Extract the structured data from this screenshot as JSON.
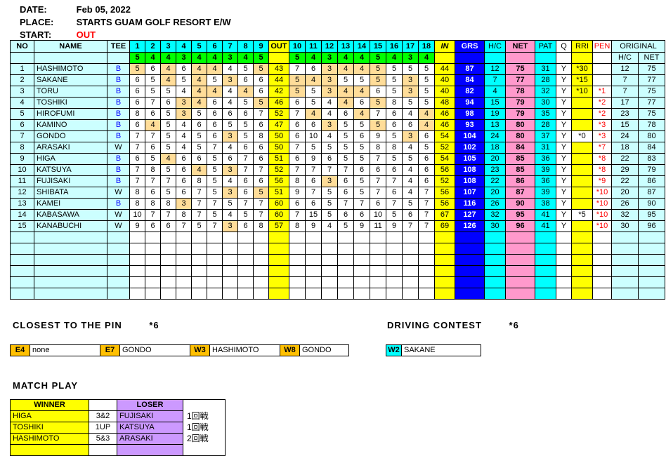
{
  "meta": {
    "date_label": "DATE:",
    "date_value": "Feb 05, 2022",
    "place_label": "PLACE:",
    "place_value": "STARTS GUAM GOLF RESORT E/W",
    "start_label": "START:",
    "start_value": "OUT"
  },
  "scorecard": {
    "headers": {
      "no": "NO",
      "name": "NAME",
      "tee": "TEE",
      "out": "OUT",
      "in": "IN",
      "grs": "GRS",
      "hc": "H/C",
      "net": "NET",
      "pat": "PAT",
      "q": "Q",
      "rri": "RRI",
      "pen": "PEN",
      "original": "ORIGINAL",
      "orig_hc": "H/C",
      "orig_net": "NET"
    },
    "hole_numbers_out": [
      "1",
      "2",
      "3",
      "4",
      "5",
      "6",
      "7",
      "8",
      "9"
    ],
    "hole_numbers_in": [
      "10",
      "11",
      "12",
      "13",
      "14",
      "15",
      "16",
      "17",
      "18"
    ],
    "par_out": [
      5,
      4,
      4,
      3,
      4,
      4,
      3,
      4,
      5
    ],
    "par_in": [
      5,
      4,
      3,
      4,
      4,
      5,
      4,
      3,
      4
    ],
    "empty_rows": 6,
    "players": [
      {
        "no": 1,
        "name": "HASHIMOTO",
        "tee": "B",
        "out_holes": [
          5,
          6,
          4,
          6,
          4,
          4,
          4,
          5,
          5
        ],
        "out": 43,
        "in_holes": [
          7,
          6,
          3,
          4,
          4,
          5,
          5,
          5,
          5
        ],
        "in": 44,
        "grs": 87,
        "hc": 12,
        "net": 75,
        "pat": 31,
        "q": "Y",
        "rri": "*30",
        "rri_white": false,
        "pen": "",
        "orig_hc": 12,
        "orig_net": 75
      },
      {
        "no": 2,
        "name": "SAKANE",
        "tee": "B",
        "out_holes": [
          6,
          5,
          4,
          5,
          4,
          5,
          3,
          6,
          6
        ],
        "out": 44,
        "in_holes": [
          5,
          4,
          3,
          5,
          5,
          5,
          5,
          3,
          5
        ],
        "in": 40,
        "grs": 84,
        "hc": 7,
        "net": 77,
        "pat": 28,
        "q": "Y",
        "rri": "*15",
        "rri_white": false,
        "pen": "",
        "orig_hc": 7,
        "orig_net": 77
      },
      {
        "no": 3,
        "name": "TORU",
        "tee": "B",
        "out_holes": [
          6,
          5,
          5,
          4,
          4,
          4,
          4,
          4,
          6
        ],
        "out": 42,
        "in_holes": [
          5,
          5,
          3,
          4,
          4,
          6,
          5,
          3,
          5
        ],
        "in": 40,
        "grs": 82,
        "hc": 4,
        "net": 78,
        "pat": 32,
        "q": "Y",
        "rri": "*10",
        "rri_white": false,
        "pen": "*1",
        "orig_hc": 7,
        "orig_net": 75
      },
      {
        "no": 4,
        "name": "TOSHIKI",
        "tee": "B",
        "out_holes": [
          6,
          7,
          6,
          3,
          4,
          6,
          4,
          5,
          5
        ],
        "out": 46,
        "in_holes": [
          6,
          5,
          4,
          4,
          6,
          5,
          8,
          5,
          5
        ],
        "in": 48,
        "grs": 94,
        "hc": 15,
        "net": 79,
        "pat": 30,
        "q": "Y",
        "rri": "",
        "rri_white": false,
        "pen": "*2",
        "orig_hc": 17,
        "orig_net": 77
      },
      {
        "no": 5,
        "name": "HIROFUMI",
        "tee": "B",
        "out_holes": [
          8,
          6,
          5,
          3,
          5,
          6,
          6,
          6,
          7
        ],
        "out": 52,
        "in_holes": [
          7,
          4,
          4,
          6,
          4,
          7,
          6,
          4,
          4
        ],
        "in": 46,
        "grs": 98,
        "hc": 19,
        "net": 79,
        "pat": 35,
        "q": "Y",
        "rri": "",
        "rri_white": false,
        "pen": "*2",
        "orig_hc": 23,
        "orig_net": 75
      },
      {
        "no": 6,
        "name": "KAMINO",
        "tee": "B",
        "out_holes": [
          6,
          4,
          5,
          4,
          6,
          6,
          5,
          5,
          6
        ],
        "out": 47,
        "in_holes": [
          6,
          6,
          3,
          5,
          5,
          5,
          6,
          6,
          4
        ],
        "in": 46,
        "grs": 93,
        "hc": 13,
        "net": 80,
        "pat": 28,
        "q": "Y",
        "rri": "",
        "rri_white": false,
        "pen": "*3",
        "orig_hc": 15,
        "orig_net": 78
      },
      {
        "no": 7,
        "name": "GONDO",
        "tee": "B",
        "out_holes": [
          7,
          7,
          5,
          4,
          5,
          6,
          3,
          5,
          8
        ],
        "out": 50,
        "in_holes": [
          6,
          10,
          4,
          5,
          6,
          9,
          5,
          3,
          6
        ],
        "in": 54,
        "grs": 104,
        "hc": 24,
        "net": 80,
        "pat": 37,
        "q": "Y",
        "rri": "*0",
        "rri_white": true,
        "pen": "*3",
        "orig_hc": 24,
        "orig_net": 80
      },
      {
        "no": 8,
        "name": "ARASAKI",
        "tee": "W",
        "out_holes": [
          7,
          6,
          5,
          4,
          5,
          7,
          4,
          6,
          6
        ],
        "out": 50,
        "in_holes": [
          7,
          5,
          5,
          5,
          5,
          8,
          8,
          4,
          5
        ],
        "in": 52,
        "grs": 102,
        "hc": 18,
        "net": 84,
        "pat": 31,
        "q": "Y",
        "rri": "",
        "rri_white": false,
        "pen": "*7",
        "orig_hc": 18,
        "orig_net": 84
      },
      {
        "no": 9,
        "name": "HIGA",
        "tee": "B",
        "out_holes": [
          6,
          5,
          4,
          6,
          6,
          5,
          6,
          7,
          6
        ],
        "out": 51,
        "in_holes": [
          6,
          9,
          6,
          5,
          5,
          7,
          5,
          5,
          6
        ],
        "in": 54,
        "grs": 105,
        "hc": 20,
        "net": 85,
        "pat": 36,
        "q": "Y",
        "rri": "",
        "rri_white": false,
        "pen": "*8",
        "orig_hc": 22,
        "orig_net": 83
      },
      {
        "no": 10,
        "name": "KATSUYA",
        "tee": "B",
        "out_holes": [
          7,
          8,
          5,
          6,
          4,
          5,
          3,
          7,
          7
        ],
        "out": 52,
        "in_holes": [
          7,
          7,
          7,
          7,
          6,
          6,
          6,
          4,
          6
        ],
        "in": 56,
        "grs": 108,
        "hc": 23,
        "net": 85,
        "pat": 39,
        "q": "Y",
        "rri": "",
        "rri_white": false,
        "pen": "*8",
        "orig_hc": 29,
        "orig_net": 79
      },
      {
        "no": 11,
        "name": "FUJISAKI",
        "tee": "B",
        "out_holes": [
          7,
          7,
          7,
          6,
          8,
          5,
          4,
          6,
          6
        ],
        "out": 56,
        "in_holes": [
          8,
          6,
          3,
          6,
          5,
          7,
          7,
          4,
          6
        ],
        "in": 52,
        "grs": 108,
        "hc": 22,
        "net": 86,
        "pat": 36,
        "q": "Y",
        "rri": "",
        "rri_white": false,
        "pen": "*9",
        "orig_hc": 22,
        "orig_net": 86
      },
      {
        "no": 12,
        "name": "SHIBATA",
        "tee": "W",
        "out_holes": [
          8,
          6,
          5,
          6,
          7,
          5,
          3,
          6,
          5
        ],
        "out": 51,
        "in_holes": [
          9,
          7,
          5,
          6,
          5,
          7,
          6,
          4,
          7
        ],
        "in": 56,
        "grs": 107,
        "hc": 20,
        "net": 87,
        "pat": 39,
        "q": "Y",
        "rri": "",
        "rri_white": false,
        "pen": "*10",
        "orig_hc": 20,
        "orig_net": 87
      },
      {
        "no": 13,
        "name": "KAMEI",
        "tee": "B",
        "out_holes": [
          8,
          8,
          8,
          3,
          7,
          7,
          5,
          7,
          7
        ],
        "out": 60,
        "in_holes": [
          6,
          6,
          5,
          7,
          7,
          6,
          7,
          5,
          7
        ],
        "in": 56,
        "grs": 116,
        "hc": 26,
        "net": 90,
        "pat": 38,
        "q": "Y",
        "rri": "",
        "rri_white": false,
        "pen": "*10",
        "orig_hc": 26,
        "orig_net": 90
      },
      {
        "no": 14,
        "name": "KABASAWA",
        "tee": "W",
        "out_holes": [
          10,
          7,
          7,
          8,
          7,
          5,
          4,
          5,
          7
        ],
        "out": 60,
        "in_holes": [
          7,
          15,
          5,
          6,
          6,
          10,
          5,
          6,
          7
        ],
        "in": 67,
        "grs": 127,
        "hc": 32,
        "net": 95,
        "pat": 41,
        "q": "Y",
        "rri": "*5",
        "rri_white": true,
        "pen": "*10",
        "orig_hc": 32,
        "orig_net": 95
      },
      {
        "no": 15,
        "name": "KANABUCHI",
        "tee": "W",
        "out_holes": [
          9,
          6,
          6,
          7,
          5,
          7,
          3,
          6,
          8
        ],
        "out": 57,
        "in_holes": [
          8,
          9,
          4,
          5,
          9,
          11,
          9,
          7,
          7
        ],
        "in": 69,
        "grs": 126,
        "hc": 30,
        "net": 96,
        "pat": 41,
        "q": "Y",
        "rri": "",
        "rri_white": false,
        "pen": "*10",
        "orig_hc": 30,
        "orig_net": 96
      }
    ]
  },
  "closest_to_the_pin": {
    "title": "CLOSEST TO THE PIN",
    "note": "*6",
    "entries": [
      {
        "hole": "E4",
        "name": "none"
      },
      {
        "hole": "E7",
        "name": "GONDO"
      },
      {
        "hole": "W3",
        "name": "HASHIMOTO"
      },
      {
        "hole": "W8",
        "name": "GONDO"
      }
    ]
  },
  "driving_contest": {
    "title": "DRIVING CONTEST",
    "note": "*6",
    "entries": [
      {
        "hole": "W2",
        "name": "SAKANE"
      }
    ]
  },
  "match_play": {
    "title": "MATCH PLAY",
    "winner_header": "WINNER",
    "loser_header": "LOSER",
    "rows": [
      {
        "winner": "HIGA",
        "score": "3&2",
        "loser": "FUJISAKI",
        "round": "1回戦"
      },
      {
        "winner": "TOSHIKI",
        "score": "1UP",
        "loser": "KATSUYA",
        "round": "1回戦"
      },
      {
        "winner": "HASHIMOTO",
        "score": "5&3",
        "loser": "ARASAKI",
        "round": "2回戦"
      }
    ],
    "empty_rows": 1
  },
  "colors": {
    "header_cyan": "#00FFFF",
    "light_cyan": "#CCFFFF",
    "yellow": "#FFFF00",
    "par_green": "#00FF00",
    "gross_blue": "#0000FF",
    "net_pink": "#FF99CC",
    "par_highlight_tan": "#FFDD99",
    "pin_label_orange": "#FFC000",
    "loser_purple": "#CC99FF",
    "pen_red": "#FF0000",
    "tee_blue": "#0000FF",
    "start_red": "#FF0000"
  }
}
